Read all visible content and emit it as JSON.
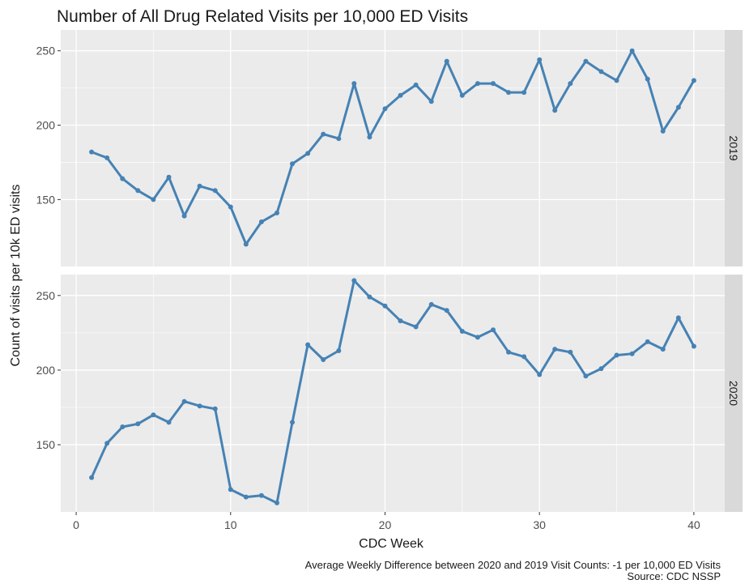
{
  "chart_data": {
    "type": "line",
    "title": "Number of All Drug Related Visits per 10,000 ED Visits",
    "xlabel": "CDC Week",
    "ylabel": "Count of visits per 10k ED visits",
    "x_ticks": [
      0,
      10,
      20,
      30,
      40
    ],
    "y_ticks": [
      150,
      200,
      250
    ],
    "xlim": [
      -1,
      42
    ],
    "ylim": [
      105,
      264
    ],
    "grid": true,
    "series_color": "#4682B4",
    "panel_background": "#EBEBEB",
    "strip_background": "#D9D9D9",
    "facets": [
      {
        "strip_label": "2019",
        "x": [
          1,
          2,
          3,
          4,
          5,
          6,
          7,
          8,
          9,
          10,
          11,
          12,
          13,
          14,
          15,
          16,
          17,
          18,
          19,
          20,
          21,
          22,
          23,
          24,
          25,
          26,
          27,
          28,
          29,
          30,
          31,
          32,
          33,
          34,
          35,
          36,
          37,
          38,
          39,
          40
        ],
        "values": [
          182,
          178,
          164,
          156,
          150,
          165,
          139,
          159,
          156,
          145,
          120,
          135,
          141,
          174,
          181,
          194,
          191,
          228,
          192,
          211,
          220,
          227,
          216,
          243,
          220,
          228,
          228,
          222,
          222,
          244,
          210,
          228,
          243,
          236,
          230,
          250,
          231,
          196,
          212,
          230
        ]
      },
      {
        "strip_label": "2020",
        "x": [
          1,
          2,
          3,
          4,
          5,
          6,
          7,
          8,
          9,
          10,
          11,
          12,
          13,
          14,
          15,
          16,
          17,
          18,
          19,
          20,
          21,
          22,
          23,
          24,
          25,
          26,
          27,
          28,
          29,
          30,
          31,
          32,
          33,
          34,
          35,
          36,
          37,
          38,
          39,
          40
        ],
        "values": [
          128,
          151,
          162,
          164,
          170,
          165,
          179,
          176,
          174,
          120,
          115,
          116,
          111,
          165,
          217,
          207,
          213,
          260,
          249,
          243,
          233,
          229,
          244,
          240,
          226,
          222,
          227,
          212,
          209,
          197,
          214,
          212,
          196,
          201,
          210,
          211,
          219,
          214,
          235,
          216
        ]
      }
    ],
    "caption_lines": [
      "Average Weekly Difference between 2020 and 2019 Visit Counts: -1 per 10,000 ED Visits",
      "Source: CDC NSSP"
    ]
  }
}
